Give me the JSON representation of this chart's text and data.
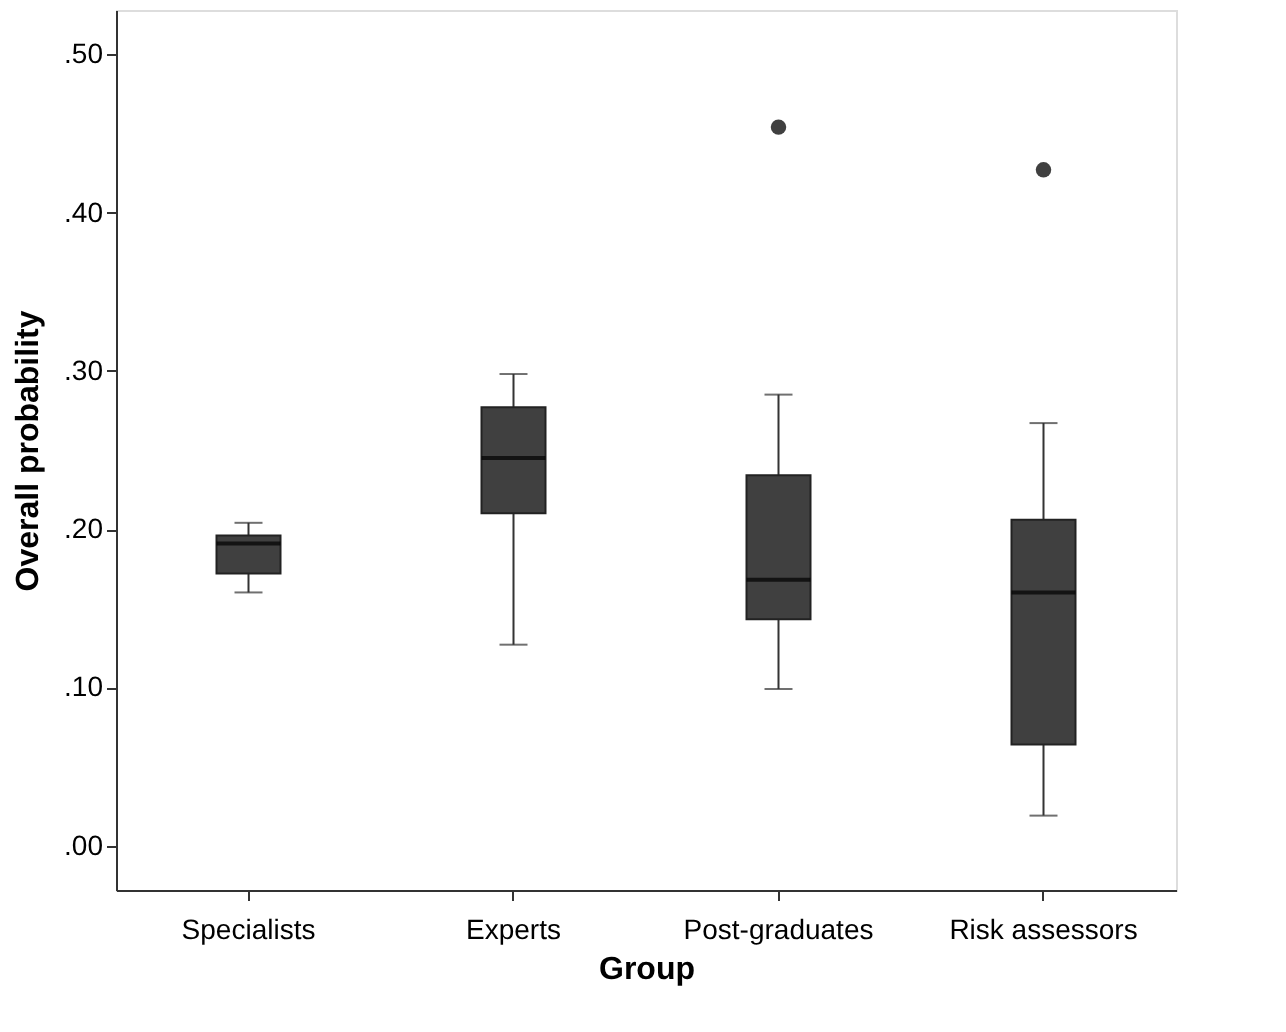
{
  "chart_data": {
    "type": "box",
    "xlabel": "Group",
    "ylabel": "Overall probability",
    "categories": [
      "Specialists",
      "Experts",
      "Post-graduates",
      "Risk assessors"
    ],
    "series": [
      {
        "color": "#404040",
        "boxes": [
          {
            "low": 0.16,
            "q1": 0.172,
            "median": 0.191,
            "q3": 0.196,
            "high": 0.204
          },
          {
            "low": 0.127,
            "q1": 0.21,
            "median": 0.245,
            "q3": 0.277,
            "high": 0.298
          },
          {
            "low": 0.099,
            "q1": 0.143,
            "median": 0.168,
            "q3": 0.234,
            "high": 0.285,
            "outliers": [
              0.454
            ]
          },
          {
            "low": 0.019,
            "q1": 0.064,
            "median": 0.16,
            "q3": 0.206,
            "high": 0.267,
            "outliers": [
              0.427
            ]
          }
        ]
      }
    ],
    "ylim": [
      -0.028,
      0.528
    ],
    "yticks": [
      {
        "value": 0,
        "label": ".00"
      },
      {
        "value": 0.1,
        "label": ".10"
      },
      {
        "value": 0.2,
        "label": ".20"
      },
      {
        "value": 0.3,
        "label": ".30"
      },
      {
        "value": 0.4,
        "label": ".40"
      },
      {
        "value": 0.5,
        "label": ".50"
      }
    ],
    "grid": false
  }
}
